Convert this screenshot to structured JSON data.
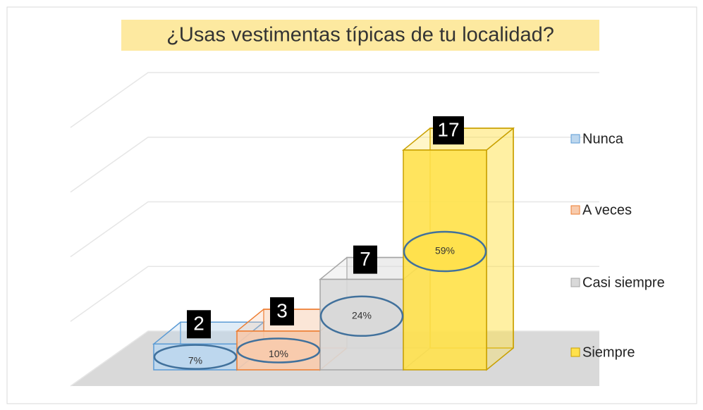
{
  "chart_data": {
    "type": "bar",
    "title": "¿Usas vestimentas típicas de tu localidad?",
    "categories": [
      "Nunca",
      "A veces",
      "Casi siempre",
      "Siempre"
    ],
    "values": [
      2,
      3,
      7,
      17
    ],
    "shares": [
      7,
      10,
      24,
      59
    ],
    "share_labels": [
      "7%",
      "10%",
      "24%",
      "59%"
    ],
    "colors": [
      "#bdd7ee",
      "#f8cbad",
      "#d9d9d9",
      "#ffe14d"
    ],
    "edge_colors": [
      "#5b9bd5",
      "#ed7d31",
      "#a5a5a5",
      "#c9a000"
    ],
    "ylim": [
      0,
      20
    ],
    "yticks": [
      0,
      5,
      10,
      15,
      20
    ],
    "grid": true,
    "legend": "right"
  }
}
